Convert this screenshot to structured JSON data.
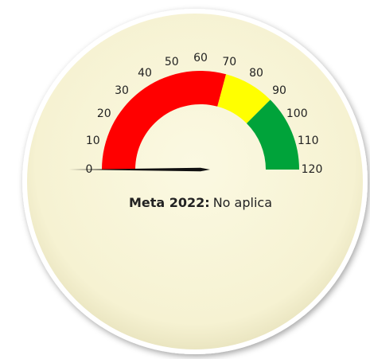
{
  "chart_data": {
    "type": "gauge",
    "range": [
      0,
      120
    ],
    "ticks": [
      0,
      10,
      20,
      30,
      40,
      50,
      60,
      70,
      80,
      90,
      100,
      110,
      120
    ],
    "bands": [
      {
        "from": 0,
        "to": 70,
        "color": "#ff0000"
      },
      {
        "from": 70,
        "to": 90,
        "color": "#ffff00"
      },
      {
        "from": 90,
        "to": 120,
        "color": "#00a33a"
      }
    ],
    "value": 0,
    "needle_color": "#111111",
    "label_title": "Meta 2022:",
    "label_value": "No aplica"
  }
}
